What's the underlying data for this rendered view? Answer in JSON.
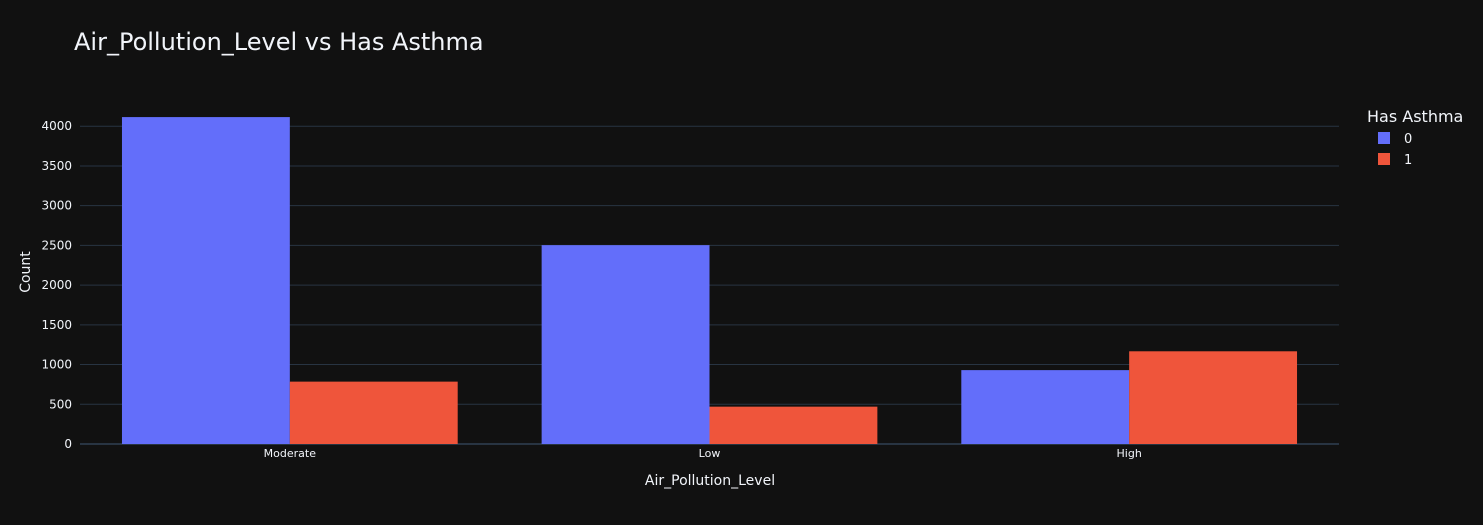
{
  "chart_data": {
    "type": "bar",
    "title": "Air_Pollution_Level vs Has Asthma",
    "xlabel": "Air_Pollution_Level",
    "ylabel": "Count",
    "categories": [
      "Moderate",
      "Low",
      "High"
    ],
    "series": [
      {
        "name": "0",
        "color": "#636efa",
        "values": [
          4115,
          2503,
          930
        ]
      },
      {
        "name": "1",
        "color": "#ef553b",
        "values": [
          785,
          470,
          1167
        ]
      }
    ],
    "ylim": [
      0,
      4330
    ],
    "yticks": [
      0,
      500,
      1000,
      1500,
      2000,
      2500,
      3000,
      3500,
      4000
    ],
    "grid": true,
    "barmode": "group",
    "legend": {
      "title": "Has Asthma",
      "placement": "top-right"
    }
  },
  "colors": {
    "background": "#111111",
    "grid": "#283442",
    "text": "#f2f5fa"
  }
}
